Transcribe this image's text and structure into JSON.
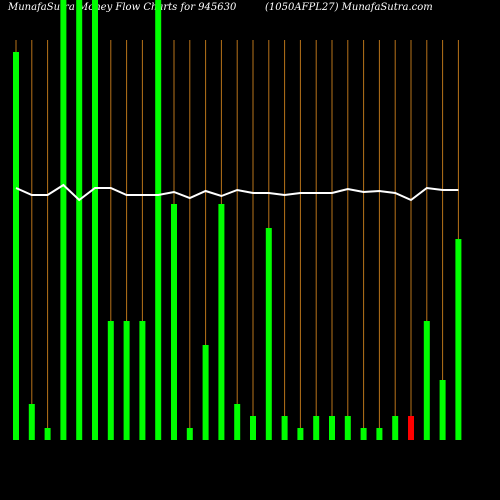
{
  "chart_data": {
    "type": "bar",
    "title": "MunafaSutra Money Flow Charts for 945630",
    "subtitle": "(1050AFPL27) MunafaSutra.com",
    "categories": [
      null,
      null,
      null,
      null,
      null,
      null,
      null,
      null,
      null,
      null,
      null,
      null,
      null,
      null,
      null,
      null,
      null,
      null,
      null,
      null,
      null,
      null,
      null,
      null,
      null,
      null,
      null,
      null,
      null
    ],
    "series": [
      {
        "type": "bar",
        "values": [
          388,
          36,
          12,
          440,
          440,
          440,
          119,
          119,
          119,
          440,
          236,
          12,
          95,
          236,
          36,
          24,
          212,
          24,
          12,
          24,
          24,
          24,
          12,
          12,
          24,
          24,
          119,
          60,
          201
        ],
        "colors": [
          "#00ff00",
          "#00ff00",
          "#00ff00",
          "#00ff00",
          "#00ff00",
          "#00ff00",
          "#00ff00",
          "#00ff00",
          "#00ff00",
          "#00ff00",
          "#00ff00",
          "#00ff00",
          "#00ff00",
          "#00ff00",
          "#00ff00",
          "#00ff00",
          "#00ff00",
          "#00ff00",
          "#00ff00",
          "#00ff00",
          "#00ff00",
          "#00ff00",
          "#00ff00",
          "#00ff00",
          "#00ff00",
          "#ff0000",
          "#00ff00",
          "#00ff00",
          "#00ff00"
        ]
      },
      {
        "type": "line",
        "color": "#ffffff",
        "values": [
          252,
          245,
          245,
          255,
          240,
          252,
          252,
          245,
          245,
          245,
          248,
          242,
          249,
          244,
          250,
          247,
          247,
          245,
          247,
          247,
          247,
          251,
          248,
          249,
          247,
          240,
          252,
          250,
          250
        ]
      }
    ],
    "ylim": [
      0,
      440
    ],
    "grid_color": "#b8731a"
  }
}
